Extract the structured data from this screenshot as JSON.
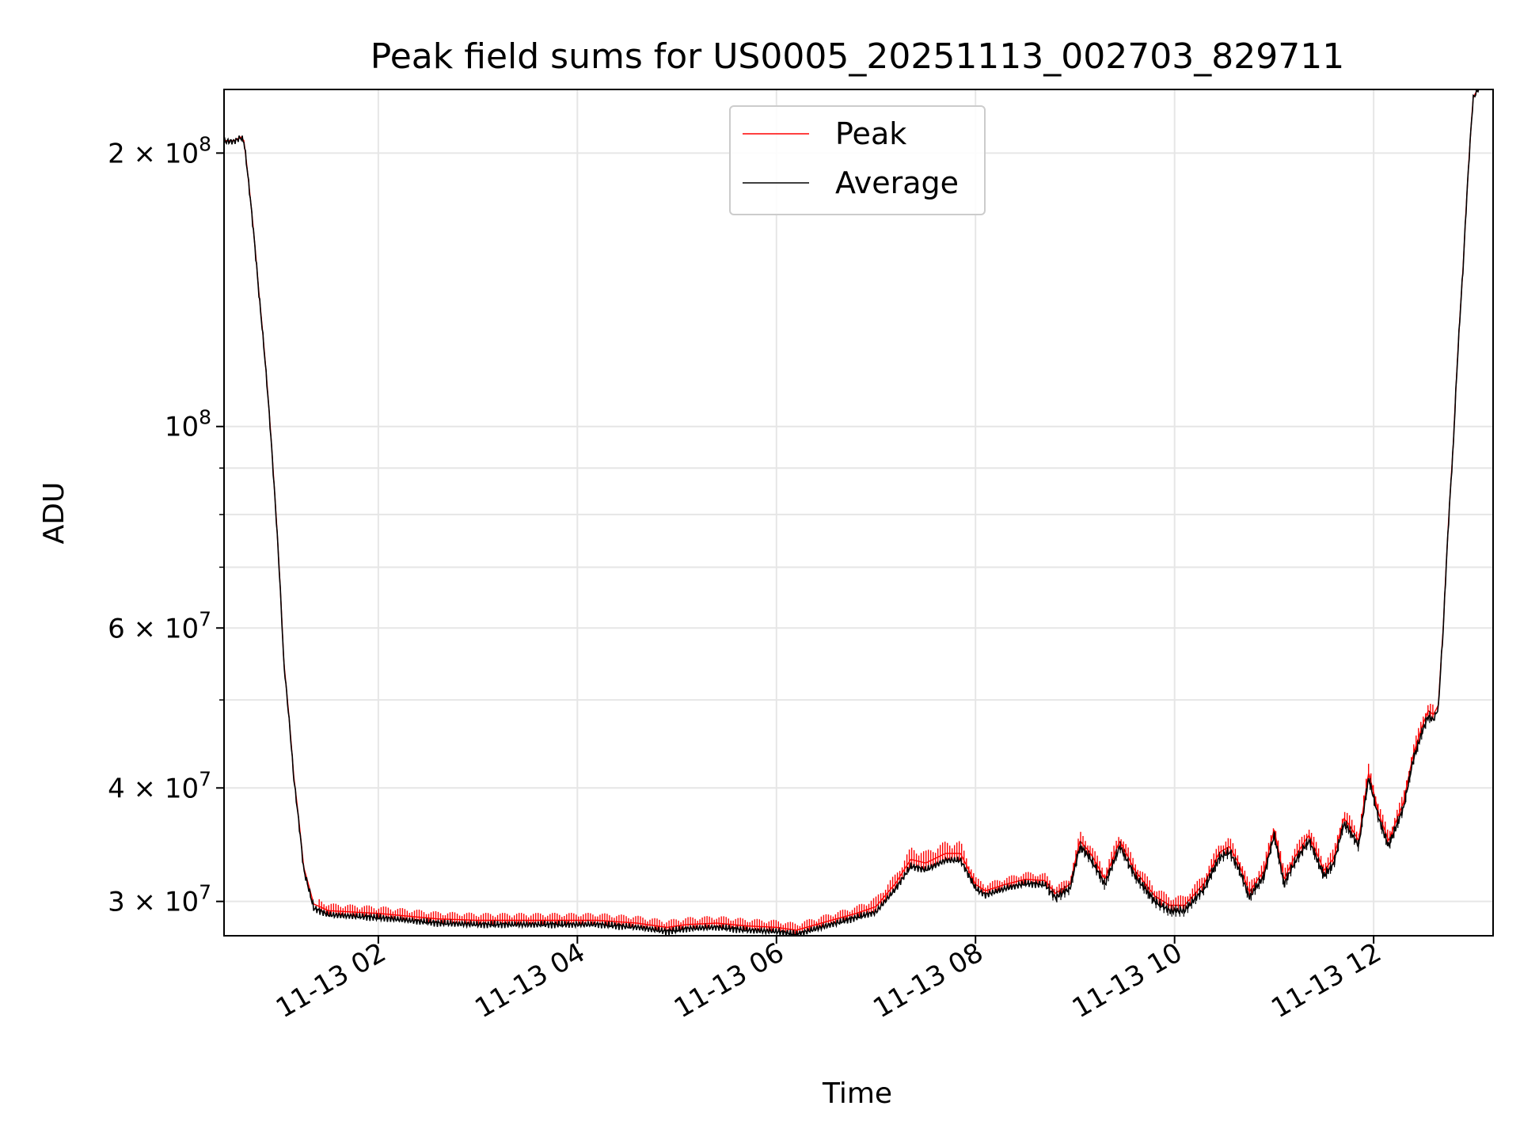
{
  "chart_data": {
    "type": "line",
    "title": "Peak field sums for US0005_20251113_002703_829711",
    "xlabel": "Time",
    "ylabel": "ADU",
    "yscale": "log",
    "grid": true,
    "legend_position": "upper center",
    "x_unit": "hours since 11-13 00:00",
    "xlim": [
      0.45,
      13.2
    ],
    "ylim": [
      27500000,
      235000000
    ],
    "x_ticks": [
      {
        "value": 2,
        "label": "11-13 02"
      },
      {
        "value": 4,
        "label": "11-13 04"
      },
      {
        "value": 6,
        "label": "11-13 06"
      },
      {
        "value": 8,
        "label": "11-13 08"
      },
      {
        "value": 10,
        "label": "11-13 10"
      },
      {
        "value": 12,
        "label": "11-13 12"
      }
    ],
    "y_ticks": [
      {
        "value": 30000000,
        "base": "3 × 10",
        "exp": "7"
      },
      {
        "value": 40000000,
        "base": "4 × 10",
        "exp": "7"
      },
      {
        "value": 60000000,
        "base": "6 × 10",
        "exp": "7"
      },
      {
        "value": 100000000,
        "base": "10",
        "exp": "8"
      },
      {
        "value": 200000000,
        "base": "2 × 10",
        "exp": "8"
      }
    ],
    "y_minor_ticks": [
      50000000,
      70000000,
      80000000,
      90000000
    ],
    "series": [
      {
        "name": "Peak",
        "color": "#ff0000",
        "role": "peak"
      },
      {
        "name": "Average",
        "color": "#000000",
        "role": "average"
      }
    ],
    "x": [
      0.45,
      0.55,
      0.62,
      0.65,
      0.8,
      0.95,
      1.05,
      1.15,
      1.25,
      1.35,
      1.5,
      1.75,
      2.0,
      2.3,
      2.6,
      3.0,
      3.4,
      3.8,
      4.2,
      4.6,
      4.9,
      5.1,
      5.4,
      5.7,
      6.0,
      6.2,
      6.4,
      6.6,
      6.8,
      7.0,
      7.2,
      7.35,
      7.5,
      7.7,
      7.85,
      8.0,
      8.1,
      8.3,
      8.5,
      8.7,
      8.8,
      8.95,
      9.05,
      9.15,
      9.3,
      9.45,
      9.6,
      9.8,
      9.95,
      10.1,
      10.3,
      10.45,
      10.55,
      10.65,
      10.75,
      10.9,
      11.0,
      11.1,
      11.2,
      11.35,
      11.5,
      11.6,
      11.7,
      11.75,
      11.85,
      11.95,
      12.05,
      12.15,
      12.3,
      12.4,
      12.5,
      12.55,
      12.6,
      12.65,
      12.7,
      12.8,
      12.9,
      13.0,
      13.1,
      13.2
    ],
    "average": [
      206000000,
      206000000,
      208000000,
      206000000,
      140000000,
      87000000,
      55000000,
      41000000,
      32500000,
      29500000,
      29000000,
      28900000,
      28800000,
      28600000,
      28400000,
      28300000,
      28300000,
      28300000,
      28300000,
      28100000,
      27800000,
      28000000,
      28100000,
      27900000,
      27800000,
      27600000,
      28000000,
      28400000,
      28800000,
      29200000,
      31000000,
      32800000,
      32500000,
      33300000,
      33300000,
      31000000,
      30500000,
      31000000,
      31400000,
      31300000,
      30300000,
      31000000,
      34500000,
      33500000,
      31300000,
      34500000,
      32000000,
      30000000,
      29300000,
      29300000,
      31000000,
      33500000,
      34000000,
      32500000,
      30300000,
      32000000,
      35500000,
      31300000,
      33000000,
      35000000,
      32000000,
      33000000,
      36500000,
      36000000,
      34500000,
      41000000,
      37000000,
      34500000,
      38000000,
      43000000,
      46500000,
      48000000,
      47500000,
      49000000,
      60000000,
      95000000,
      150000000,
      230000000,
      240000000,
      240000000
    ],
    "peak_excess": [
      0.005,
      0.005,
      0.005,
      0.005,
      0.01,
      0.01,
      0.01,
      0.015,
      0.02,
      0.03,
      0.03,
      0.03,
      0.03,
      0.03,
      0.03,
      0.03,
      0.03,
      0.03,
      0.03,
      0.03,
      0.03,
      0.03,
      0.03,
      0.03,
      0.03,
      0.03,
      0.03,
      0.03,
      0.03,
      0.04,
      0.04,
      0.05,
      0.05,
      0.05,
      0.05,
      0.03,
      0.03,
      0.03,
      0.03,
      0.03,
      0.03,
      0.03,
      0.04,
      0.04,
      0.04,
      0.04,
      0.04,
      0.04,
      0.04,
      0.04,
      0.04,
      0.04,
      0.04,
      0.04,
      0.04,
      0.04,
      0.04,
      0.04,
      0.04,
      0.04,
      0.04,
      0.04,
      0.04,
      0.04,
      0.04,
      0.04,
      0.04,
      0.04,
      0.04,
      0.04,
      0.04,
      0.04,
      0.04,
      0.02,
      0.01,
      0.01,
      0.005,
      0.005,
      0.005,
      0.005
    ]
  }
}
